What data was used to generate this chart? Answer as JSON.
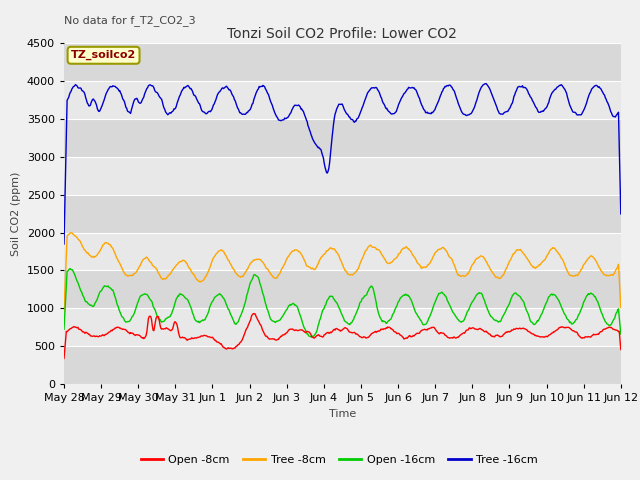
{
  "title": "Tonzi Soil CO2 Profile: Lower CO2",
  "subtitle": "No data for f_T2_CO2_3",
  "ylabel": "Soil CO2 (ppm)",
  "xlabel": "Time",
  "legend_label": "TZ_soilco2",
  "ylim": [
    0,
    4500
  ],
  "xlim": [
    0,
    15
  ],
  "background_color": "#f0f0f0",
  "plot_bg_colors": [
    "#e8e8e8",
    "#d8d8d8"
  ],
  "legend_entries": [
    "Open -8cm",
    "Tree -8cm",
    "Open -16cm",
    "Tree -16cm"
  ],
  "legend_colors": [
    "#ff0000",
    "#ffa500",
    "#00cc00",
    "#0000cc"
  ],
  "x_tick_labels": [
    "May 28",
    "May 29",
    "May 30",
    "May 31",
    "Jun 1",
    "Jun 2",
    "Jun 3",
    "Jun 4",
    "Jun 5",
    "Jun 6",
    "Jun 7",
    "Jun 8",
    "Jun 9",
    "Jun 10",
    "Jun 11",
    "Jun 12"
  ],
  "y_ticks": [
    0,
    500,
    1000,
    1500,
    2000,
    2500,
    3000,
    3500,
    4000,
    4500
  ]
}
